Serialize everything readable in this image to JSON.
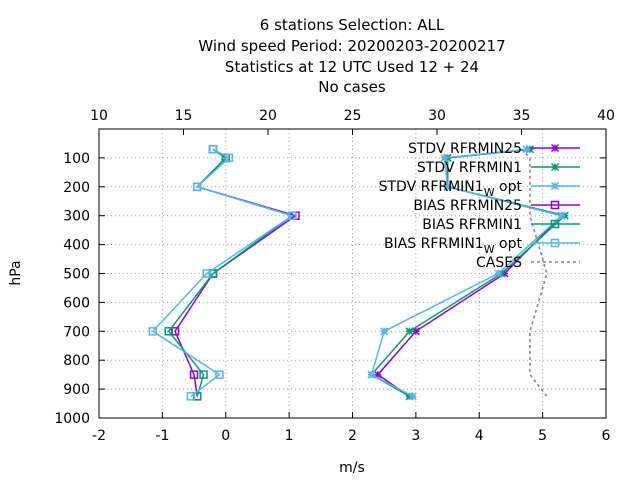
{
  "title": {
    "line1": "6 stations Selection: ALL",
    "line2": "Wind speed  Period: 20200203-20200217",
    "line3": "Statistics at 12 UTC  Used  12 + 24",
    "line4": "No cases"
  },
  "axes": {
    "xlabel": "m/s",
    "ylabel": "hPa"
  },
  "chart_data": {
    "type": "line",
    "xlim": [
      -2,
      6
    ],
    "x2lim": [
      10,
      40
    ],
    "ylim": [
      1000,
      0
    ],
    "y_reversed": true,
    "xticks": [
      -2,
      -1,
      0,
      1,
      2,
      3,
      4,
      5,
      6
    ],
    "x2ticks": [
      10,
      15,
      20,
      25,
      30,
      35,
      40
    ],
    "yticks": [
      100,
      200,
      300,
      400,
      500,
      600,
      700,
      800,
      900,
      1000
    ],
    "grid": true,
    "legend_position": "top-right",
    "levels": [
      70,
      100,
      200,
      300,
      500,
      700,
      850,
      925
    ],
    "series": [
      {
        "name": "STDV RFRMIN25",
        "name_sub": "",
        "kind": "stdv",
        "color": "#9400d3",
        "marker": "star",
        "values": [
          4.8,
          3.5,
          3.5,
          5.3,
          4.4,
          3.0,
          2.4,
          2.9
        ]
      },
      {
        "name": "STDV RFRMIN1",
        "name_sub": "",
        "kind": "stdv",
        "color": "#009e73",
        "marker": "star",
        "values": [
          4.8,
          3.5,
          3.5,
          5.35,
          4.35,
          2.9,
          2.3,
          2.9
        ]
      },
      {
        "name": "STDV RFRMIN1",
        "name_sub": "W",
        "name_suffix": " opt",
        "kind": "stdv",
        "color": "#56b4e9",
        "marker": "star",
        "values": [
          4.75,
          3.45,
          3.5,
          5.3,
          4.3,
          2.5,
          2.3,
          2.95
        ]
      },
      {
        "name": "BIAS RFRMIN25",
        "name_sub": "",
        "kind": "bias",
        "color": "#9400d3",
        "marker": "square",
        "values": [
          -0.2,
          0.0,
          -0.45,
          1.1,
          -0.2,
          -0.8,
          -0.5,
          -0.45
        ]
      },
      {
        "name": "BIAS RFRMIN1",
        "name_sub": "",
        "kind": "bias",
        "color": "#009e73",
        "marker": "square",
        "values": [
          -0.2,
          0.0,
          -0.45,
          1.05,
          -0.2,
          -0.9,
          -0.35,
          -0.45
        ]
      },
      {
        "name": "BIAS RFRMIN1",
        "name_sub": "W",
        "name_suffix": " opt",
        "kind": "bias",
        "color": "#56b4e9",
        "marker": "square",
        "values": [
          -0.2,
          0.05,
          -0.45,
          1.05,
          -0.3,
          -1.15,
          -0.1,
          -0.55
        ]
      },
      {
        "name": "CASES",
        "name_sub": "",
        "kind": "cases",
        "color": "#808080",
        "marker": "none",
        "axis": "x2",
        "values": [
          35.0,
          35.5,
          35.5,
          35.5,
          36.5,
          35.5,
          35.5,
          36.5
        ]
      }
    ]
  }
}
